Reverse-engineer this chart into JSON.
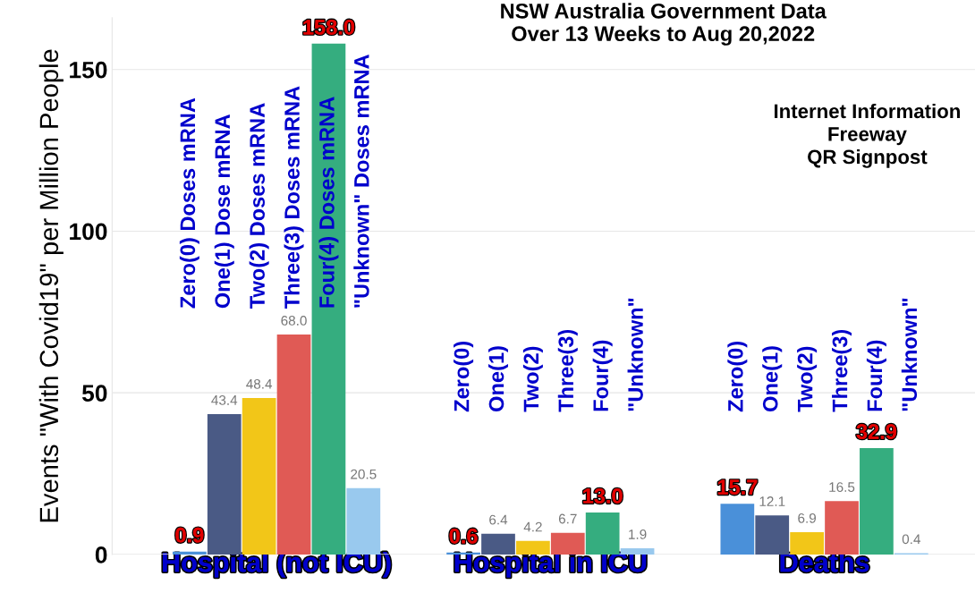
{
  "chart_data": {
    "type": "bar",
    "title": "NSW Australia Government Data\nOver 13 Weeks to Aug 20,2022",
    "ylabel": "Events \"With Covid19\" per Million People",
    "categories": [
      "Hospital (not ICU)",
      "Hospital in ICU",
      "Deaths"
    ],
    "series": [
      {
        "color": "#4a90d9",
        "values": [
          0.9,
          0.6,
          15.7
        ],
        "value_labels": [
          "0.9",
          "0.6",
          "15.7"
        ]
      },
      {
        "color": "#4a5a85",
        "values": [
          43.4,
          6.4,
          12.1
        ],
        "value_labels": [
          "43.4",
          "6.4",
          "12.1"
        ]
      },
      {
        "color": "#f2c618",
        "values": [
          48.4,
          4.2,
          6.9
        ],
        "value_labels": [
          "48.4",
          "4.2",
          "6.9"
        ]
      },
      {
        "color": "#e05a55",
        "values": [
          68.0,
          6.7,
          16.5
        ],
        "value_labels": [
          "68.0",
          "6.7",
          "16.5"
        ]
      },
      {
        "color": "#35ad7f",
        "values": [
          158.0,
          13.0,
          32.9
        ],
        "value_labels": [
          "158.0",
          "13.0",
          "32.9"
        ]
      },
      {
        "color": "#99c9ee",
        "values": [
          20.5,
          1.9,
          0.4
        ],
        "value_labels": [
          "20.5",
          "1.9",
          "0.4"
        ]
      }
    ],
    "ylim": [
      0,
      166
    ],
    "yticks": [
      0,
      50,
      100,
      150
    ],
    "grid": "y",
    "annotations": [
      "Zero(0) Doses mRNA",
      "One(1) Dose mRNA",
      "Two(2) Doses mRNA",
      "Three(3) Doses mRNA",
      "Four(4) Doses mRNA",
      "\"Unknown\" Doses mRNA",
      "Zero(0)",
      "One(1)",
      "Two(2)",
      "Three(3)",
      "Four(4)",
      "\"Unknown\"",
      "Zero(0)",
      "One(1)",
      "Two(2)",
      "Three(3)",
      "Four(4)",
      "\"Unknown\"",
      "Internet Information\nFreeway\nQR Signpost"
    ]
  }
}
